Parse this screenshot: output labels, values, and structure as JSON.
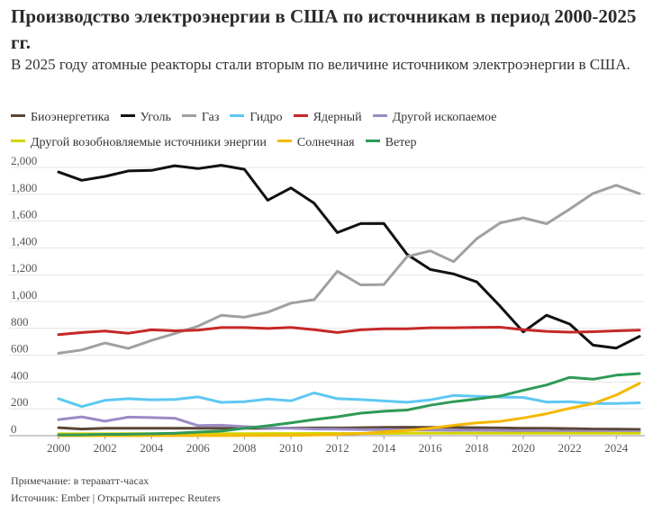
{
  "header": {
    "title": "Производство электроэнергии в США по источникам в период 2000-2025 гг.",
    "subtitle": "В 2025 году атомные реакторы стали вторым по величине источником электроэнергии в США."
  },
  "footer": {
    "note": "Примечание: в тераватт-часах",
    "source": "Источник: Ember | Открытый интерес Reuters"
  },
  "chart_data": {
    "type": "line",
    "title": "Производство электроэнергии в США по источникам в период 2000-2025 гг.",
    "subtitle": "В 2025 году атомные реакторы стали вторым по величине источником электроэнергии в США.",
    "legend_position": "top",
    "grid": true,
    "xlim": [
      2000,
      2025
    ],
    "ylim": [
      0,
      2000
    ],
    "x_ticks": [
      "2000",
      "2002",
      "2004",
      "2006",
      "2008",
      "2010",
      "2012",
      "2014",
      "2016",
      "2018",
      "2020",
      "2022",
      "2024"
    ],
    "y_ticks": [
      "0",
      "200",
      "400",
      "600",
      "800",
      "1,000",
      "1,200",
      "1,400",
      "1,600",
      "1,800",
      "2,000"
    ],
    "x": [
      2000,
      2001,
      2002,
      2003,
      2004,
      2005,
      2006,
      2007,
      2008,
      2009,
      2010,
      2011,
      2012,
      2013,
      2014,
      2015,
      2016,
      2017,
      2018,
      2019,
      2020,
      2021,
      2022,
      2023,
      2024,
      2025
    ],
    "series": [
      {
        "name": "Биоэнергетика",
        "color": "#5b4636",
        "values": [
          60,
          50,
          55,
          55,
          55,
          55,
          55,
          55,
          55,
          55,
          57,
          58,
          58,
          60,
          62,
          63,
          62,
          62,
          60,
          58,
          56,
          55,
          53,
          50,
          48,
          47
        ]
      },
      {
        "name": "Уголь",
        "color": "#111111",
        "values": [
          1966,
          1904,
          1933,
          1974,
          1978,
          2013,
          1991,
          2016,
          1986,
          1756,
          1847,
          1733,
          1514,
          1581,
          1582,
          1352,
          1239,
          1206,
          1146,
          966,
          774,
          898,
          832,
          675,
          653,
          740
        ]
      },
      {
        "name": "Газ",
        "color": "#a0a0a0",
        "values": [
          615,
          639,
          691,
          650,
          710,
          761,
          816,
          897,
          883,
          921,
          988,
          1014,
          1226,
          1124,
          1127,
          1335,
          1378,
          1297,
          1469,
          1586,
          1624,
          1580,
          1689,
          1806,
          1867,
          1805
        ]
      },
      {
        "name": "Гидро",
        "color": "#5ec8f2",
        "values": [
          276,
          217,
          264,
          276,
          268,
          270,
          289,
          248,
          254,
          273,
          260,
          319,
          276,
          269,
          259,
          249,
          267,
          300,
          293,
          288,
          285,
          251,
          254,
          240,
          240,
          245
        ]
      },
      {
        "name": "Ядерный",
        "color": "#c62828",
        "values": [
          754,
          769,
          780,
          764,
          789,
          782,
          787,
          806,
          806,
          799,
          807,
          790,
          769,
          789,
          797,
          797,
          805,
          805,
          807,
          809,
          790,
          778,
          772,
          775,
          782,
          787
        ]
      },
      {
        "name": "Другой ископаемое",
        "color": "#9b8bc6",
        "values": [
          120,
          140,
          108,
          138,
          135,
          130,
          75,
          78,
          68,
          60,
          55,
          50,
          48,
          45,
          45,
          43,
          42,
          40,
          40,
          38,
          36,
          35,
          33,
          32,
          30,
          30
        ]
      },
      {
        "name": "Другой возобновляемые источники энергии",
        "color": "#d4d400",
        "values": [
          14,
          14,
          14,
          15,
          15,
          15,
          15,
          15,
          15,
          16,
          16,
          17,
          17,
          17,
          17,
          18,
          18,
          18,
          18,
          18,
          18,
          18,
          18,
          18,
          18,
          19
        ]
      },
      {
        "name": "Солнечная",
        "color": "#f5b800",
        "values": [
          0,
          0,
          0,
          0,
          1,
          1,
          1,
          1,
          2,
          2,
          3,
          5,
          9,
          16,
          28,
          39,
          55,
          77,
          96,
          107,
          132,
          164,
          204,
          239,
          303,
          390
        ]
      },
      {
        "name": "Ветер",
        "color": "#2e9a57",
        "values": [
          6,
          7,
          10,
          11,
          14,
          18,
          27,
          34,
          55,
          74,
          95,
          120,
          141,
          168,
          182,
          191,
          227,
          254,
          273,
          296,
          338,
          378,
          435,
          421,
          451,
          463
        ]
      }
    ]
  }
}
